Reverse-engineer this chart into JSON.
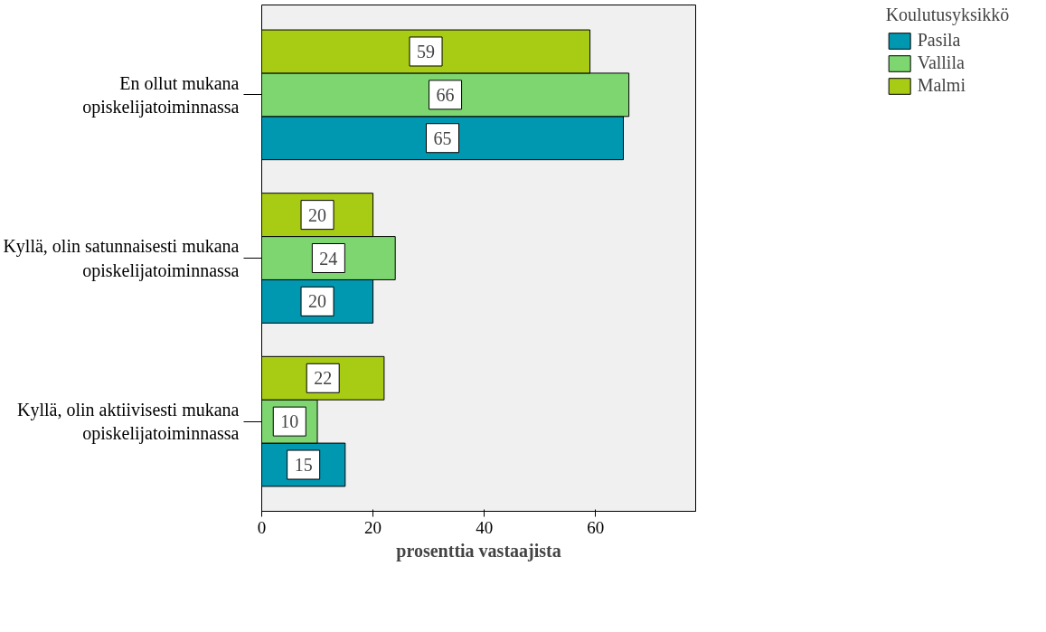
{
  "chart_data": {
    "type": "bar",
    "orientation": "horizontal",
    "xlabel": "prosenttia vastaajista",
    "legend_title": "Koulutusyksikkö",
    "legend": "right",
    "categories": [
      "En ollut mukana\nopiskelijatoiminnassa",
      "Kyllä, olin satunnaisesti mukana\nopiskelijatoiminnassa",
      "Kyllä, olin aktiivisesti mukana\nopiskelijatoiminnassa"
    ],
    "series": [
      {
        "name": "Pasila",
        "color": "#0097b0",
        "values": [
          65,
          20,
          15
        ]
      },
      {
        "name": "Vallila",
        "color": "#7dd670",
        "values": [
          66,
          24,
          10
        ]
      },
      {
        "name": "Malmi",
        "color": "#a8cc14",
        "values": [
          59,
          20,
          22
        ]
      }
    ],
    "xlim": [
      0,
      78
    ],
    "xticks": [
      0,
      20,
      40,
      60
    ],
    "data_labels": true,
    "grid": false
  }
}
